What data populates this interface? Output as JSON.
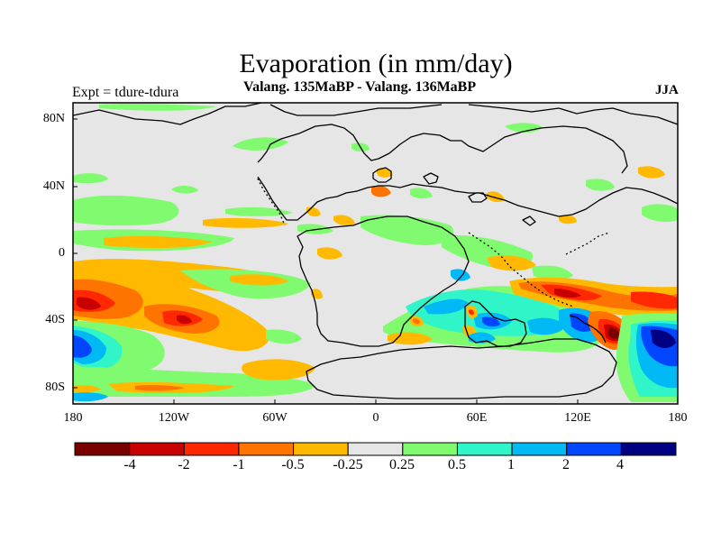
{
  "title": "Evaporation (in mm/day)",
  "subtitle": "Valang.  135MaBP - Valang.  136MaBP",
  "left_label": "Expt = tdure-tdura",
  "right_label": "JJA",
  "axes": {
    "lon_ticks": [
      "180",
      "120W",
      "60W",
      "0",
      "60E",
      "120E",
      "180"
    ],
    "lat_ticks": [
      "80N",
      "40N",
      "0",
      "40S",
      "80S"
    ]
  },
  "colorbar": {
    "colors": [
      "#7a0000",
      "#c80000",
      "#ff2800",
      "#ff7300",
      "#ffb900",
      "#e6e6e6",
      "#80fa6e",
      "#30f5c8",
      "#00b9f5",
      "#0046ff",
      "#000082"
    ],
    "labels": [
      "-4",
      "-2",
      "-1",
      "-0.5",
      "-0.25",
      "0.25",
      "0.5",
      "1",
      "2",
      "4"
    ]
  },
  "palette": {
    "neutral": "#e6e6e6",
    "coast": "#000000"
  }
}
